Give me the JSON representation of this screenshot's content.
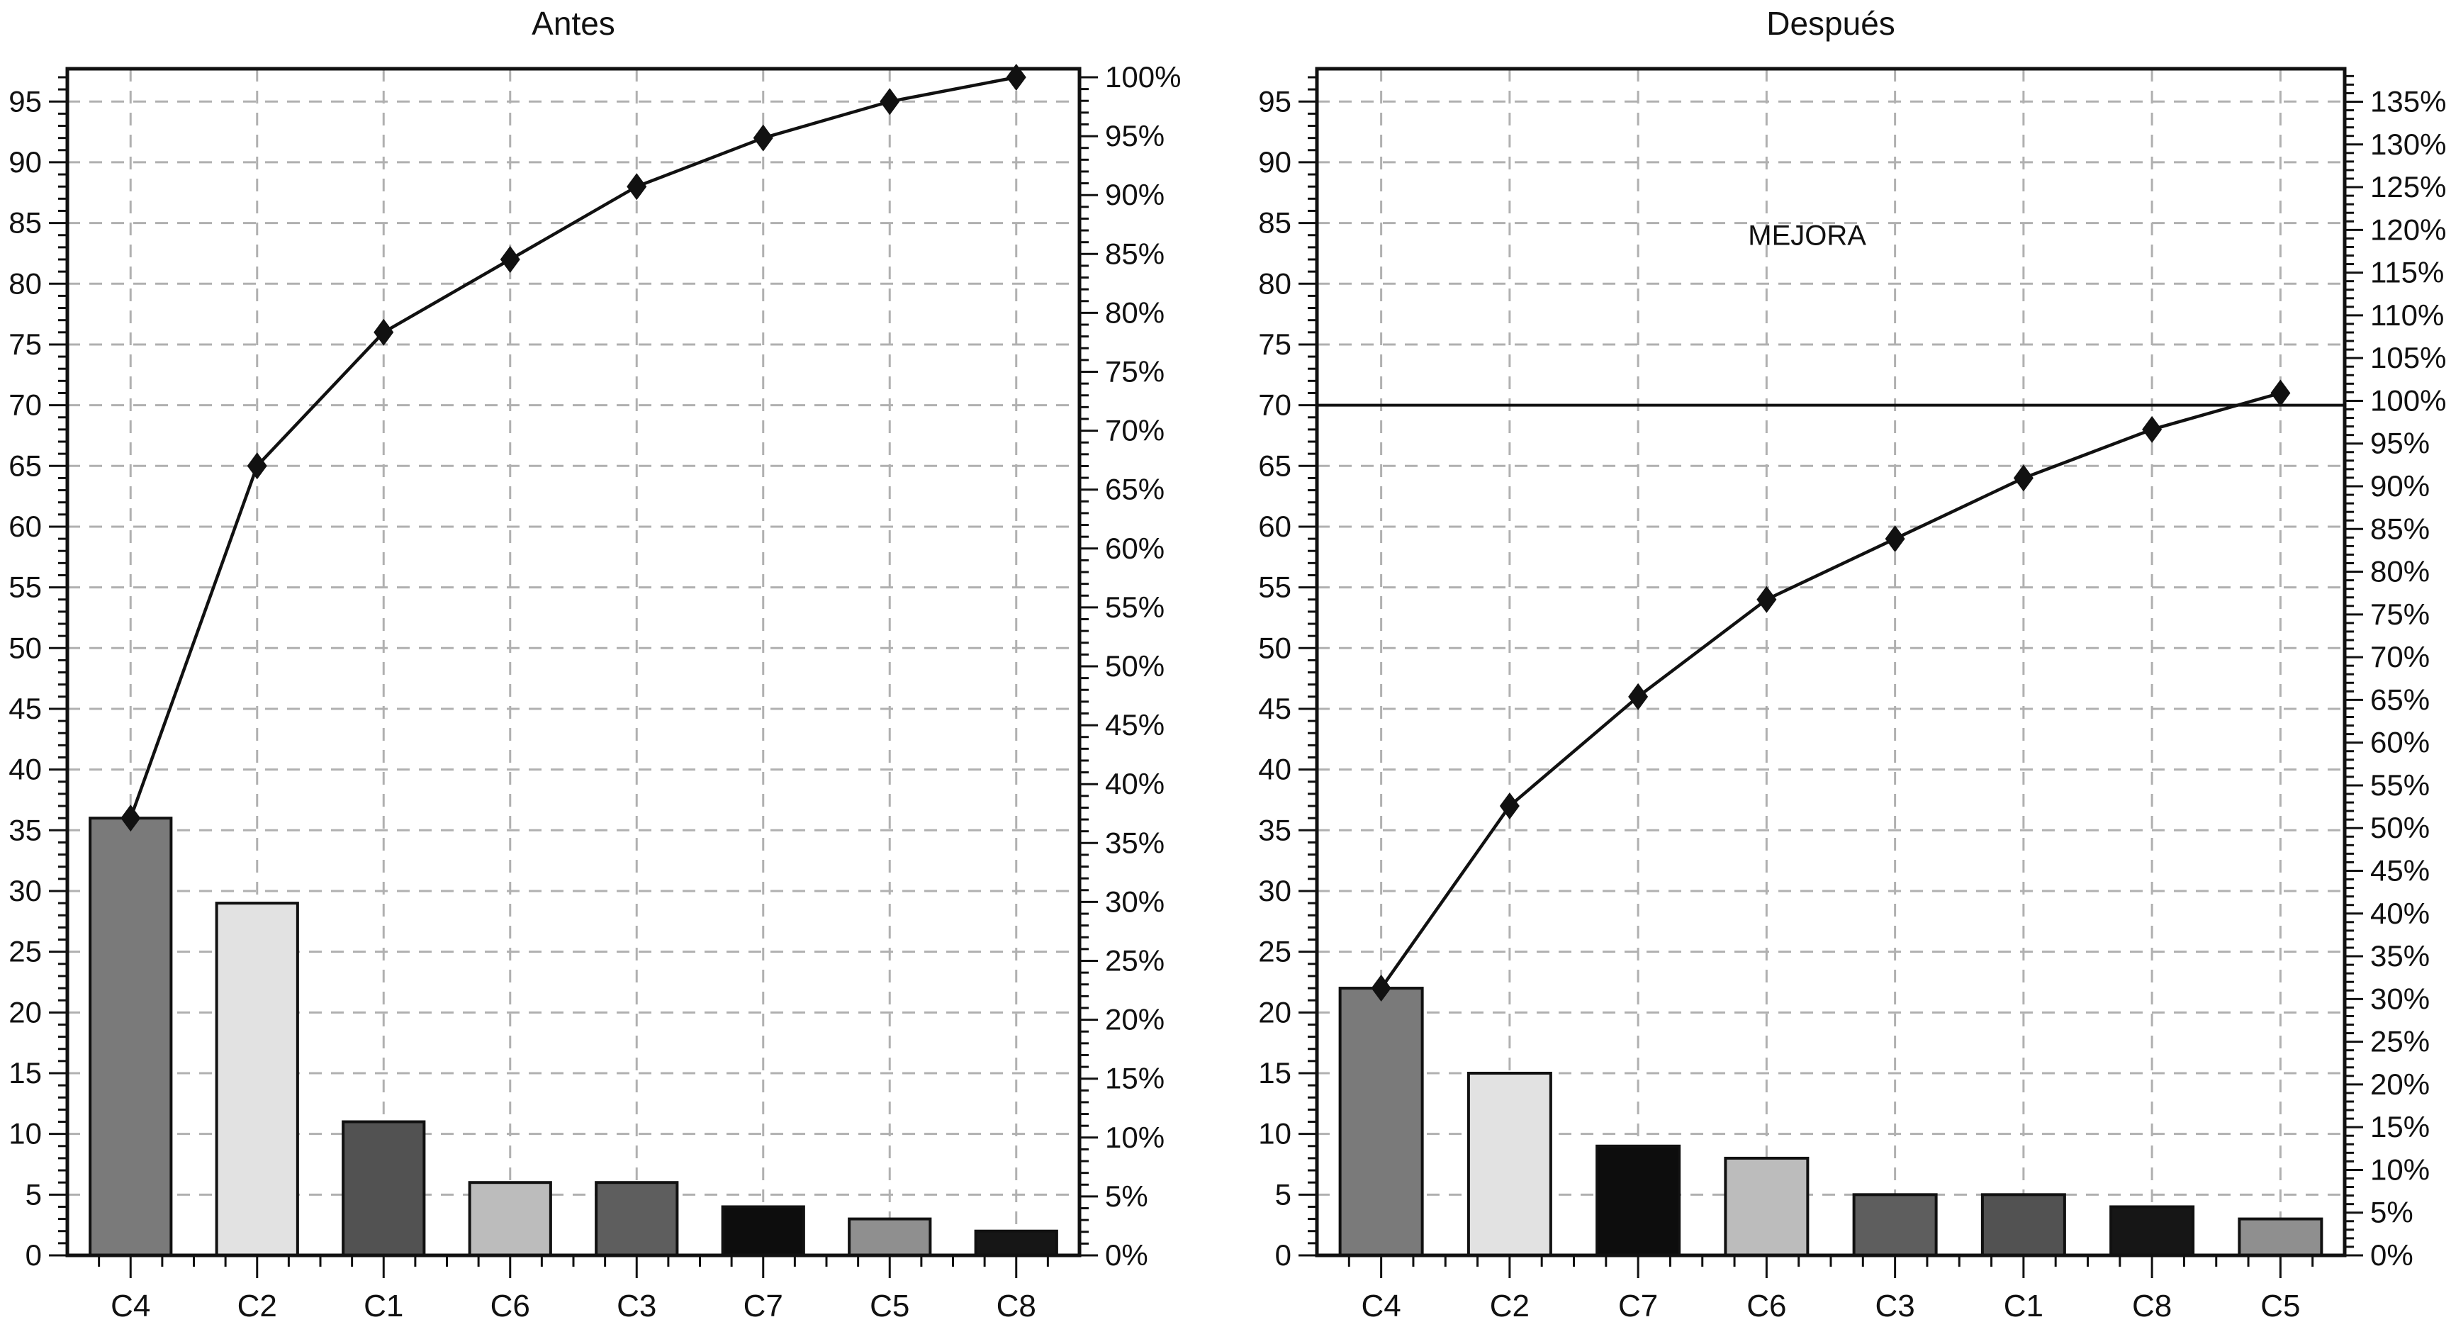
{
  "page_background": "#ffffff",
  "chart_data": [
    {
      "id": "antes",
      "type": "bar",
      "subtype": "pareto-with-cumulative-line",
      "title": "Antes",
      "categories": [
        "C4",
        "C2",
        "C1",
        "C6",
        "C3",
        "C7",
        "C5",
        "C8"
      ],
      "values": [
        36,
        29,
        11,
        6,
        6,
        4,
        3,
        2
      ],
      "bar_colors": [
        "#7a7a7a",
        "#e2e2e2",
        "#525252",
        "#bcbcbc",
        "#5e5e5e",
        "#0d0d0d",
        "#8f8f8f",
        "#161616"
      ],
      "series": [
        {
          "name": "frequency-bars",
          "values": [
            36,
            29,
            11,
            6,
            6,
            4,
            3,
            2
          ]
        },
        {
          "name": "cumulative-line",
          "values": [
            36,
            65,
            76,
            82,
            88,
            92,
            95,
            97
          ]
        }
      ],
      "cumulative_counts": [
        36,
        65,
        76,
        82,
        88,
        92,
        95,
        97
      ],
      "cumulative_pct": [
        37.1,
        67.0,
        78.4,
        84.5,
        90.7,
        94.8,
        97.9,
        100.0
      ],
      "xlabel": "",
      "ylabel": "",
      "grid": "dashed horizontal every 5 units and vertical at each category",
      "legend": "none",
      "left_axis": {
        "display_max": 97.7,
        "major_step": 5,
        "minor_step": 1,
        "tick_labels": [
          "0",
          "5",
          "10",
          "15",
          "20",
          "25",
          "30",
          "35",
          "40",
          "45",
          "50",
          "55",
          "60",
          "65",
          "70",
          "75",
          "80",
          "85",
          "90",
          "95"
        ]
      },
      "right_axis": {
        "left_units_per_pct": 0.97,
        "major_step_pct": 5,
        "minor_step_pct": 1,
        "tick_labels": [
          "0%",
          "5%",
          "10%",
          "15%",
          "20%",
          "25%",
          "30%",
          "35%",
          "40%",
          "45%",
          "50%",
          "55%",
          "60%",
          "65%",
          "70%",
          "75%",
          "80%",
          "85%",
          "90%",
          "95%",
          "100%"
        ]
      },
      "annotations": [],
      "reference_line": null
    },
    {
      "id": "despues",
      "type": "bar",
      "subtype": "pareto-with-cumulative-line",
      "title": "Después",
      "categories": [
        "C4",
        "C2",
        "C7",
        "C6",
        "C3",
        "C1",
        "C8",
        "C5"
      ],
      "values": [
        22,
        15,
        9,
        8,
        5,
        5,
        4,
        3
      ],
      "bar_colors": [
        "#7a7a7a",
        "#e2e2e2",
        "#0d0d0d",
        "#bcbcbc",
        "#5e5e5e",
        "#525252",
        "#161616",
        "#8f8f8f"
      ],
      "series": [
        {
          "name": "frequency-bars",
          "values": [
            22,
            15,
            9,
            8,
            5,
            5,
            4,
            3
          ]
        },
        {
          "name": "cumulative-line",
          "values": [
            22,
            37,
            46,
            54,
            59,
            64,
            68,
            71
          ]
        }
      ],
      "cumulative_counts": [
        22,
        37,
        46,
        54,
        59,
        64,
        68,
        71
      ],
      "cumulative_pct": [
        31.0,
        52.1,
        64.8,
        76.1,
        83.1,
        90.1,
        95.8,
        100.0
      ],
      "xlabel": "",
      "ylabel": "",
      "grid": "dashed horizontal every 5 units and vertical at each category",
      "legend": "none",
      "left_axis": {
        "display_max": 97.7,
        "major_step": 5,
        "minor_step": 1,
        "tick_labels": [
          "0",
          "5",
          "10",
          "15",
          "20",
          "25",
          "30",
          "35",
          "40",
          "45",
          "50",
          "55",
          "60",
          "65",
          "70",
          "75",
          "80",
          "85",
          "90",
          "95"
        ]
      },
      "right_axis": {
        "left_units_per_pct": 0.7036,
        "major_step_pct": 5,
        "minor_step_pct": 1,
        "tick_labels": [
          "0%",
          "5%",
          "10%",
          "15%",
          "20%",
          "25%",
          "30%",
          "35%",
          "40%",
          "45%",
          "50%",
          "55%",
          "60%",
          "65%",
          "70%",
          "75%",
          "80%",
          "85%",
          "90%",
          "95%",
          "100%",
          "105%",
          "110%",
          "115%",
          "120%",
          "125%",
          "130%",
          "135%"
        ]
      },
      "annotations": [
        {
          "text": "MEJORA",
          "x_fraction": 0.477,
          "value_y": 84
        }
      ],
      "reference_line": {
        "value": 70
      }
    }
  ]
}
